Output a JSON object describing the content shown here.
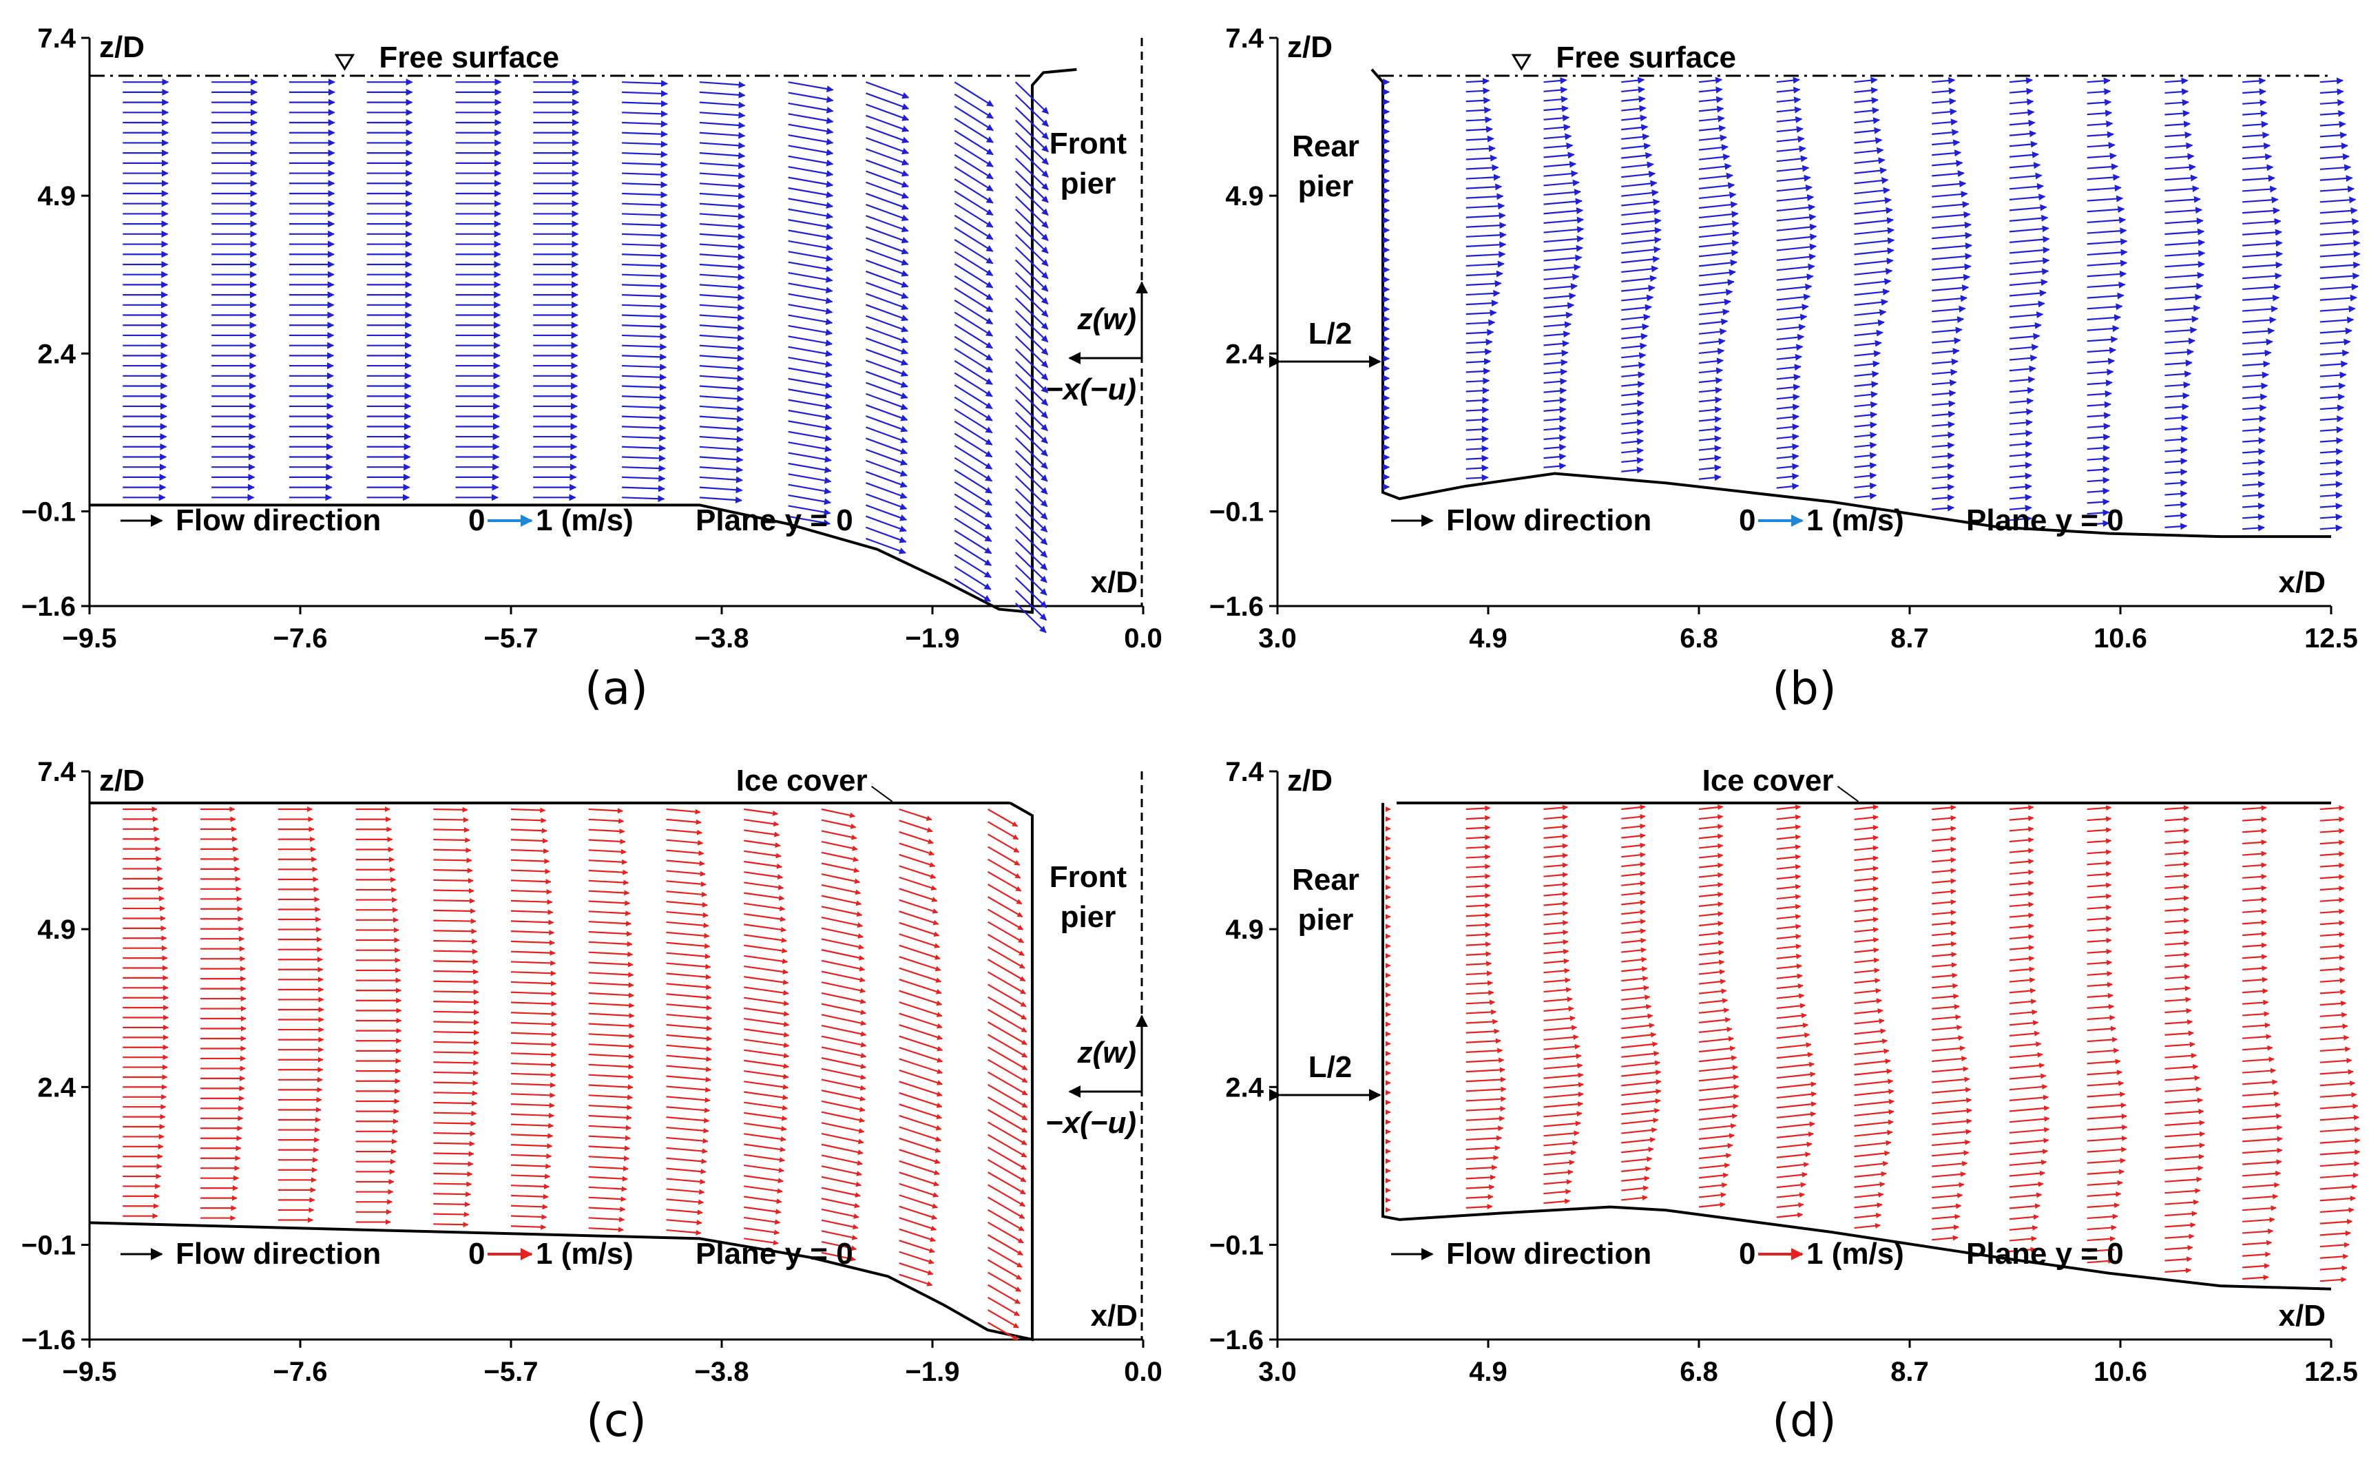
{
  "colors": {
    "panel_a_b": "#1f1fd6",
    "panel_c_d": "#e8201e",
    "legend_arrow_blue": "#1e88d8",
    "legend_arrow_red": "#e8201e",
    "axis": "#000000"
  },
  "chart_data": [
    {
      "id": "a",
      "type": "quiver",
      "caption": "(a)",
      "surface": "free",
      "color_key": "blue",
      "xlim": [
        -9.5,
        0.0
      ],
      "ylim": [
        -1.6,
        7.4
      ],
      "xticks": [
        "−9.5",
        "−7.6",
        "−5.7",
        "−3.8",
        "−1.9",
        "0.0"
      ],
      "yticks": [
        "7.4",
        "4.9",
        "2.4",
        "−0.1",
        "−1.6"
      ],
      "ylabel": "z/D",
      "xlabel": "x/D",
      "surface_label": "Free surface",
      "surface_z": 6.8,
      "surface_marker_x": -7.2,
      "pier_label_1": "Front",
      "pier_label_2": "pier",
      "inset_z": "z(w)",
      "inset_x": "−x(−u)",
      "legend_flow": "Flow direction",
      "legend_scale_0": "0",
      "legend_scale_1": "1 (m/s)",
      "legend_plane": "Plane y = 0",
      "bed": [
        [
          -9.5,
          0.0
        ],
        [
          -4.0,
          0.0
        ],
        [
          -3.2,
          -0.3
        ],
        [
          -2.4,
          -0.7
        ],
        [
          -1.8,
          -1.2
        ],
        [
          -1.3,
          -1.65
        ],
        [
          -1.0,
          -1.7
        ],
        [
          -1.0,
          6.65
        ],
        [
          -0.9,
          6.85
        ],
        [
          -0.6,
          6.9
        ]
      ],
      "profile_x": [
        -9.2,
        -8.4,
        -7.7,
        -7.0,
        -6.2,
        -5.5,
        -4.7,
        -4.0,
        -3.2,
        -2.5,
        -1.7,
        -1.15
      ],
      "arrow_angle_deg": [
        0,
        0,
        0,
        0,
        0,
        0,
        -2,
        -4,
        -10,
        -20,
        -32,
        -44
      ],
      "speed_profile": "uniform"
    },
    {
      "id": "b",
      "type": "quiver",
      "caption": "(b)",
      "surface": "free",
      "color_key": "blue",
      "xlim": [
        3.0,
        12.5
      ],
      "ylim": [
        -1.6,
        7.4
      ],
      "xticks": [
        "3.0",
        "4.9",
        "6.8",
        "8.7",
        "10.6",
        "12.5"
      ],
      "yticks": [
        "7.4",
        "4.9",
        "2.4",
        "−0.1",
        "−1.6"
      ],
      "ylabel": "z/D",
      "xlabel": "x/D",
      "surface_label": "Free surface",
      "surface_z": 6.8,
      "surface_marker_x": 5.2,
      "pier_label_1": "Rear",
      "pier_label_2": "pier",
      "gap_label": "L/2",
      "legend_flow": "Flow direction",
      "legend_scale_0": "0",
      "legend_scale_1": "1 (m/s)",
      "legend_plane": "Plane y = 0",
      "bed": [
        [
          3.85,
          6.9
        ],
        [
          3.95,
          6.7
        ],
        [
          3.95,
          0.2
        ],
        [
          4.1,
          0.1
        ],
        [
          4.7,
          0.3
        ],
        [
          5.5,
          0.5
        ],
        [
          6.5,
          0.35
        ],
        [
          8.0,
          0.05
        ],
        [
          9.5,
          -0.35
        ],
        [
          10.5,
          -0.45
        ],
        [
          11.5,
          -0.5
        ],
        [
          12.5,
          -0.5
        ]
      ],
      "profile_x": [
        4.0,
        4.7,
        5.4,
        6.1,
        6.8,
        7.5,
        8.2,
        8.9,
        9.6,
        10.3,
        11.0,
        11.7,
        12.4
      ],
      "arrow_angle_deg": [
        0,
        3,
        5,
        6,
        6,
        6,
        6,
        5,
        5,
        4,
        4,
        4,
        4
      ],
      "speed_profile": "wake"
    },
    {
      "id": "c",
      "type": "quiver",
      "caption": "(c)",
      "surface": "ice",
      "color_key": "red",
      "xlim": [
        -9.5,
        0.0
      ],
      "ylim": [
        -1.6,
        7.4
      ],
      "xticks": [
        "−9.5",
        "−7.6",
        "−5.7",
        "−3.8",
        "−1.9",
        "0.0"
      ],
      "yticks": [
        "7.4",
        "4.9",
        "2.4",
        "−0.1",
        "−1.6"
      ],
      "ylabel": "z/D",
      "xlabel": "x/D",
      "surface_label": "Ice cover",
      "surface_z": 6.9,
      "pier_label_1": "Front",
      "pier_label_2": "pier",
      "inset_z": "z(w)",
      "inset_x": "−x(−u)",
      "legend_flow": "Flow direction",
      "legend_scale_0": "0",
      "legend_scale_1": "1 (m/s)",
      "legend_plane": "Plane y = 0",
      "bed": [
        [
          -9.5,
          0.25
        ],
        [
          -4.0,
          0.0
        ],
        [
          -3.0,
          -0.3
        ],
        [
          -2.3,
          -0.6
        ],
        [
          -1.8,
          -1.05
        ],
        [
          -1.4,
          -1.45
        ],
        [
          -1.0,
          -1.6
        ],
        [
          -1.0,
          6.7
        ],
        [
          -1.2,
          6.9
        ]
      ],
      "profile_x": [
        -9.2,
        -8.5,
        -7.8,
        -7.1,
        -6.4,
        -5.7,
        -5.0,
        -4.3,
        -3.6,
        -2.9,
        -2.2,
        -1.4
      ],
      "arrow_angle_deg": [
        0,
        0,
        0,
        0,
        -1,
        -2,
        -3,
        -5,
        -8,
        -12,
        -18,
        -30
      ],
      "speed_profile": "ice"
    },
    {
      "id": "d",
      "type": "quiver",
      "caption": "(d)",
      "surface": "ice",
      "color_key": "red",
      "xlim": [
        3.0,
        12.5
      ],
      "ylim": [
        -1.6,
        7.4
      ],
      "xticks": [
        "3.0",
        "4.9",
        "6.8",
        "8.7",
        "10.6",
        "12.5"
      ],
      "yticks": [
        "7.4",
        "4.9",
        "2.4",
        "−0.1",
        "−1.6"
      ],
      "ylabel": "z/D",
      "xlabel": "x/D",
      "surface_label": "Ice cover",
      "surface_z": 6.9,
      "pier_label_1": "Rear",
      "pier_label_2": "pier",
      "gap_label": "L/2",
      "legend_flow": "Flow direction",
      "legend_scale_0": "0",
      "legend_scale_1": "1 (m/s)",
      "legend_plane": "Plane y = 0",
      "bed": [
        [
          3.95,
          6.9
        ],
        [
          3.95,
          0.35
        ],
        [
          4.1,
          0.3
        ],
        [
          5.0,
          0.4
        ],
        [
          6.0,
          0.5
        ],
        [
          6.5,
          0.45
        ],
        [
          8.0,
          0.1
        ],
        [
          9.5,
          -0.3
        ],
        [
          10.5,
          -0.55
        ],
        [
          11.5,
          -0.75
        ],
        [
          12.5,
          -0.8
        ]
      ],
      "profile_x": [
        4.0,
        4.7,
        5.4,
        6.1,
        6.8,
        7.5,
        8.2,
        8.9,
        9.6,
        10.3,
        11.0,
        11.7,
        12.4
      ],
      "arrow_angle_deg": [
        0,
        3,
        5,
        6,
        6,
        6,
        6,
        5,
        5,
        4,
        4,
        4,
        4
      ],
      "speed_profile": "icewake"
    }
  ]
}
